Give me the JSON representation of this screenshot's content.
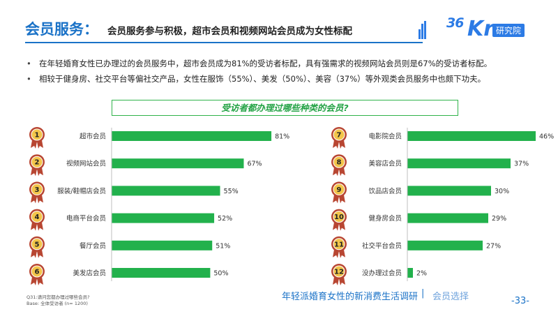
{
  "header": {
    "title": "会员服务：",
    "subtitle": "会员服务参与积极，超市会员和视频网站会员成为女性标配"
  },
  "logo": {
    "num": "36",
    "kr": "Kr",
    "badge": "研究院"
  },
  "bullets": [
    "在年轻婚育女性已办理过的会员服务中，超市会员成为81%的受访者标配，具有强需求的视频网站会员则是67%的受访者标配。",
    "相较于健身房、社交平台等偏社交产品，女性在服饰（55%）、美发（50%）、美容（37%）等外观类会员服务中也颇下功夫。"
  ],
  "chart_title": "受访者都办理过哪些种类的会员?",
  "footnote": {
    "line1": "Q31:请问您都办理过哪些会员?",
    "line2": "Base: 全体受访者 (n= 1200)"
  },
  "footer": {
    "title": "年轻派婚育女性的新消费生活调研",
    "separator": "|",
    "section": "会员选择",
    "page": "-33-"
  },
  "colors": {
    "bar": "#22b14c",
    "badge_outer": "#b84632",
    "badge_inner": "#f3c54a",
    "accent": "#1a72c7"
  },
  "chart_data": [
    {
      "type": "bar",
      "orientation": "horizontal",
      "categories": [
        "超市会员",
        "视频网站会员",
        "服装/鞋帽店会员",
        "电商平台会员",
        "餐厅会员",
        "美发店会员"
      ],
      "ranks": [
        "1",
        "2",
        "3",
        "4",
        "5",
        "6"
      ],
      "values": [
        81,
        67,
        55,
        52,
        51,
        50
      ],
      "value_labels": [
        "81%",
        "67%",
        "55%",
        "52%",
        "51%",
        "50%"
      ],
      "unit": "%",
      "xlim": [
        0,
        100
      ]
    },
    {
      "type": "bar",
      "orientation": "horizontal",
      "categories": [
        "电影院会员",
        "美容店会员",
        "饮品店会员",
        "健身房会员",
        "社交平台会员",
        "没办理过会员"
      ],
      "ranks": [
        "7",
        "8",
        "9",
        "10",
        "11",
        "12"
      ],
      "values": [
        46,
        37,
        30,
        29,
        27,
        2
      ],
      "value_labels": [
        "46%",
        "37%",
        "30%",
        "29%",
        "27%",
        "2%"
      ],
      "unit": "%",
      "xlim": [
        0,
        100
      ]
    }
  ]
}
